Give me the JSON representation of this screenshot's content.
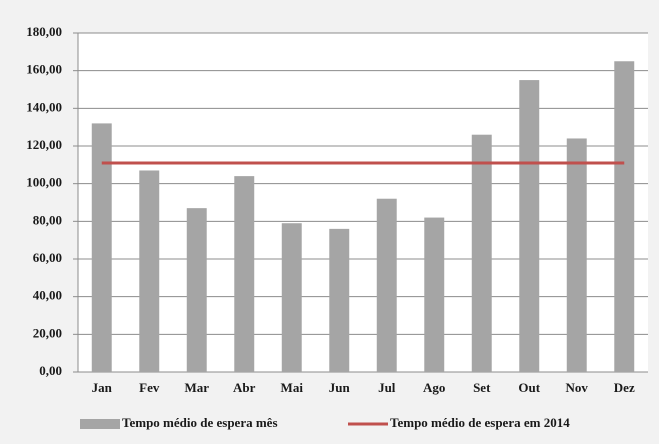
{
  "chart_data": {
    "type": "bar",
    "categories": [
      "Jan",
      "Fev",
      "Mar",
      "Abr",
      "Mai",
      "Jun",
      "Jul",
      "Ago",
      "Set",
      "Out",
      "Nov",
      "Dez"
    ],
    "series": [
      {
        "name": "Tempo médio de espera mês",
        "color": "#a5a5a5",
        "type": "bar",
        "values": [
          132,
          107,
          87,
          104,
          79,
          76,
          92,
          82,
          126,
          155,
          124,
          165
        ]
      },
      {
        "name": "Tempo médio de espera em 2014",
        "color": "#c0504d",
        "type": "line",
        "values": [
          111,
          111,
          111,
          111,
          111,
          111,
          111,
          111,
          111,
          111,
          111,
          111
        ]
      }
    ],
    "ylim": [
      0,
      180
    ],
    "yticks": [
      {
        "value": 0,
        "label": "0,00"
      },
      {
        "value": 20,
        "label": "20,00"
      },
      {
        "value": 40,
        "label": "40,00"
      },
      {
        "value": 60,
        "label": "60,00"
      },
      {
        "value": 80,
        "label": "80,00"
      },
      {
        "value": 100,
        "label": "100,00"
      },
      {
        "value": 120,
        "label": "120,00"
      },
      {
        "value": 140,
        "label": "140,00"
      },
      {
        "value": 160,
        "label": "160,00"
      },
      {
        "value": 180,
        "label": "180,00"
      }
    ],
    "grid": true,
    "legend": "bottom"
  }
}
